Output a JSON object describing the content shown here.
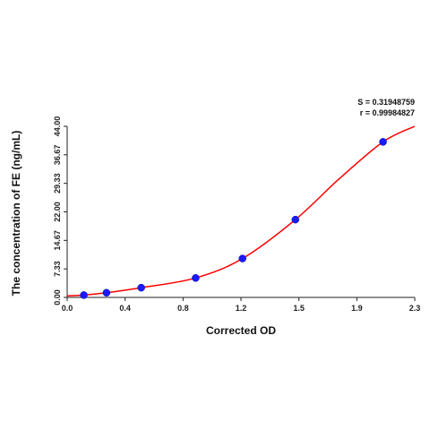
{
  "chart_data": {
    "type": "scatter",
    "xlabel": "Corrected OD",
    "ylabel": "The concentration of FE (ng/mL)",
    "xlim": [
      0.0,
      2.3
    ],
    "ylim": [
      0.0,
      44.0
    ],
    "xticks": [
      "0.0",
      "0.4",
      "0.8",
      "1.2",
      "1.5",
      "1.9",
      "2.3"
    ],
    "yticks": [
      "0.00",
      "7.33",
      "14.67",
      "22.00",
      "29.33",
      "36.67",
      "44.00"
    ],
    "grid": false,
    "points": {
      "x": [
        0.11,
        0.26,
        0.49,
        0.85,
        1.16,
        1.51,
        2.09
      ],
      "y": [
        0.6,
        1.2,
        2.5,
        5.0,
        10.0,
        20.0,
        40.0
      ]
    },
    "fit_curve": {
      "x": [
        0.0,
        0.11,
        0.26,
        0.49,
        0.85,
        1.16,
        1.51,
        1.8,
        2.09,
        2.3
      ],
      "y": [
        0.4,
        0.6,
        1.2,
        2.5,
        5.0,
        10.0,
        20.0,
        30.5,
        40.0,
        44.0
      ]
    },
    "annotations": [
      "S = 0.31948759",
      "r = 0.99984827"
    ],
    "colors": {
      "points": "#1a1aff",
      "curve": "#ff0000",
      "axis": "#222222"
    }
  }
}
